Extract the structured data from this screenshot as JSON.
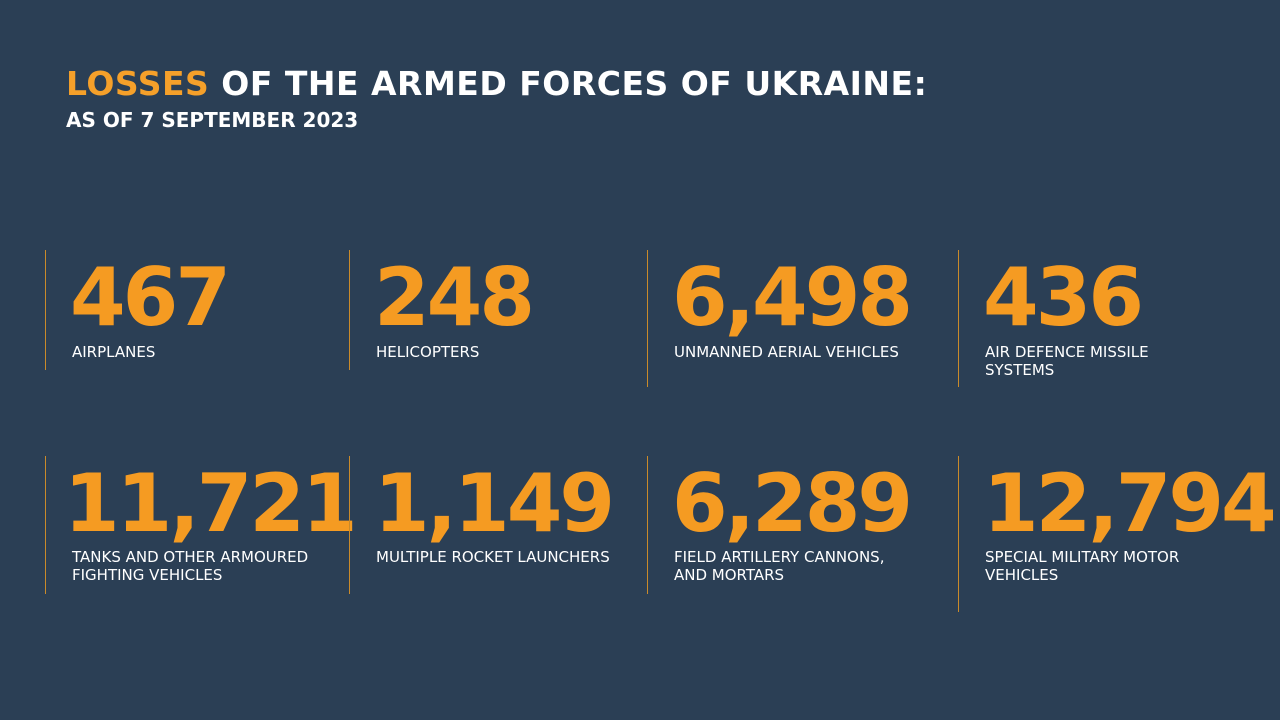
{
  "header": {
    "title_accent": "LOSSES",
    "title_rest": " OF THE ARMED FORCES OF UKRAINE:",
    "subtitle": "AS OF 7 SEPTEMBER 2023"
  },
  "stats": [
    {
      "value": "467",
      "label": "AIRPLANES"
    },
    {
      "value": "248",
      "label": "HELICOPTERS"
    },
    {
      "value": "6,498",
      "label": "UNMANNED AERIAL VEHICLES"
    },
    {
      "value": "436",
      "label": "AIR DEFENCE MISSILE\nSYSTEMS"
    },
    {
      "value": "11,721",
      "label": "TANKS AND OTHER ARMOURED\nFIGHTING VEHICLES"
    },
    {
      "value": "1,149",
      "label": "MULTIPLE ROCKET LAUNCHERS"
    },
    {
      "value": "6,289",
      "label": "FIELD ARTILLERY CANNONS,\nAND MORTARS"
    },
    {
      "value": "12,794",
      "label": "SPECIAL MILITARY MOTOR\nVEHICLES"
    }
  ],
  "colors": {
    "background": "#2b3f55",
    "accent": "#f59b22",
    "divider": "#c98a2a",
    "text": "#ffffff"
  }
}
